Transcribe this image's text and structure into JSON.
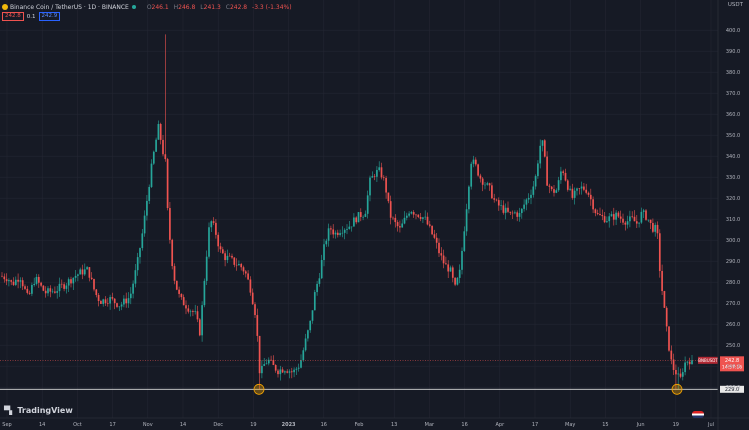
{
  "header": {
    "symbol": "Binance Coin / TetherUS · 1D · BINANCE",
    "ohlc_open_label": "O",
    "ohlc_open": "246.1",
    "ohlc_high_label": "H",
    "ohlc_high": "246.8",
    "ohlc_low_label": "L",
    "ohlc_low": "241.3",
    "ohlc_close_label": "C",
    "ohlc_close": "242.8",
    "ohlc_change": "-3.3 (-1.34%)",
    "sell_price": "242.8",
    "spread": "0.1",
    "buy_price": "242.9"
  },
  "currency": "USDT",
  "branding": "TradingView",
  "price_tag": {
    "symbol": "BNBUSDT",
    "price": "242.8",
    "countdown": "14:57:16"
  },
  "support_label": "229.0",
  "colors": {
    "up": "#26a69a",
    "down": "#ef5350",
    "bg": "#161a25",
    "grid": "#232632",
    "support": "#d9d9d9",
    "marker": "#f7a600"
  },
  "chart_data": {
    "type": "candlestick",
    "ylim": [
      222,
      402
    ],
    "y_ticks": [
      "230.0",
      "240.0",
      "250.0",
      "260.0",
      "270.0",
      "280.0",
      "290.0",
      "300.0",
      "310.0",
      "320.0",
      "330.0",
      "340.0",
      "350.0",
      "360.0",
      "370.0",
      "380.0",
      "390.0",
      "400.0"
    ],
    "x_ticks": [
      "Sep",
      "14",
      "Oct",
      "17",
      "Nov",
      "14",
      "Dec",
      "19",
      "2023",
      "16",
      "Feb",
      "13",
      "Mar",
      "16",
      "Apr",
      "17",
      "May",
      "15",
      "Jun",
      "19",
      "Jul"
    ],
    "support_level": 229.0,
    "current_price": 242.8,
    "path": [
      [
        0,
        283
      ],
      [
        8,
        282
      ],
      [
        12,
        279
      ],
      [
        20,
        283
      ],
      [
        28,
        272
      ],
      [
        35,
        282
      ],
      [
        45,
        275
      ],
      [
        55,
        276
      ],
      [
        65,
        279
      ],
      [
        75,
        283
      ],
      [
        82,
        285
      ],
      [
        88,
        286
      ],
      [
        95,
        275
      ],
      [
        100,
        271
      ],
      [
        110,
        272
      ],
      [
        120,
        269
      ],
      [
        130,
        273
      ],
      [
        137,
        288
      ],
      [
        143,
        305
      ],
      [
        150,
        330
      ],
      [
        155,
        345
      ],
      [
        159,
        355
      ],
      [
        162,
        343
      ],
      [
        165,
        340
      ],
      [
        168,
        310
      ],
      [
        172,
        290
      ],
      [
        175,
        280
      ],
      [
        180,
        272
      ],
      [
        188,
        268
      ],
      [
        195,
        265
      ],
      [
        200,
        256
      ],
      [
        205,
        285
      ],
      [
        210,
        310
      ],
      [
        215,
        305
      ],
      [
        220,
        295
      ],
      [
        225,
        292
      ],
      [
        230,
        291
      ],
      [
        235,
        289
      ],
      [
        240,
        288
      ],
      [
        245,
        285
      ],
      [
        250,
        278
      ],
      [
        255,
        266
      ],
      [
        258,
        250
      ],
      [
        260,
        235
      ],
      [
        263,
        240
      ],
      [
        268,
        243
      ],
      [
        273,
        240
      ],
      [
        278,
        238
      ],
      [
        285,
        239
      ],
      [
        293,
        237
      ],
      [
        300,
        241
      ],
      [
        305,
        251
      ],
      [
        310,
        260
      ],
      [
        315,
        275
      ],
      [
        320,
        285
      ],
      [
        325,
        299
      ],
      [
        330,
        306
      ],
      [
        335,
        303
      ],
      [
        340,
        305
      ],
      [
        345,
        306
      ],
      [
        350,
        307
      ],
      [
        355,
        310
      ],
      [
        360,
        312
      ],
      [
        365,
        313
      ],
      [
        370,
        328
      ],
      [
        375,
        332
      ],
      [
        380,
        333
      ],
      [
        385,
        327
      ],
      [
        390,
        312
      ],
      [
        395,
        308
      ],
      [
        400,
        305
      ],
      [
        405,
        310
      ],
      [
        410,
        315
      ],
      [
        415,
        313
      ],
      [
        420,
        312
      ],
      [
        425,
        310
      ],
      [
        430,
        305
      ],
      [
        435,
        300
      ],
      [
        440,
        293
      ],
      [
        445,
        288
      ],
      [
        450,
        286
      ],
      [
        455,
        277
      ],
      [
        460,
        285
      ],
      [
        463,
        300
      ],
      [
        467,
        318
      ],
      [
        471,
        338
      ],
      [
        475,
        336
      ],
      [
        480,
        330
      ],
      [
        485,
        327
      ],
      [
        490,
        324
      ],
      [
        495,
        318
      ],
      [
        500,
        316
      ],
      [
        505,
        314
      ],
      [
        510,
        312
      ],
      [
        515,
        313
      ],
      [
        520,
        312
      ],
      [
        525,
        318
      ],
      [
        530,
        322
      ],
      [
        535,
        328
      ],
      [
        540,
        345
      ],
      [
        543,
        346
      ],
      [
        547,
        328
      ],
      [
        552,
        323
      ],
      [
        557,
        324
      ],
      [
        562,
        335
      ],
      [
        567,
        327
      ],
      [
        572,
        320
      ],
      [
        577,
        323
      ],
      [
        582,
        325
      ],
      [
        587,
        324
      ],
      [
        592,
        318
      ],
      [
        597,
        312
      ],
      [
        602,
        311
      ],
      [
        607,
        310
      ],
      [
        612,
        311
      ],
      [
        617,
        312
      ],
      [
        622,
        310
      ],
      [
        627,
        309
      ],
      [
        632,
        310
      ],
      [
        637,
        308
      ],
      [
        642,
        313
      ],
      [
        647,
        311
      ],
      [
        652,
        306
      ],
      [
        657,
        305
      ],
      [
        660,
        285
      ],
      [
        664,
        268
      ],
      [
        668,
        252
      ],
      [
        672,
        240
      ],
      [
        676,
        237
      ],
      [
        680,
        233
      ],
      [
        684,
        241
      ],
      [
        688,
        243
      ],
      [
        692,
        242.8
      ]
    ]
  }
}
